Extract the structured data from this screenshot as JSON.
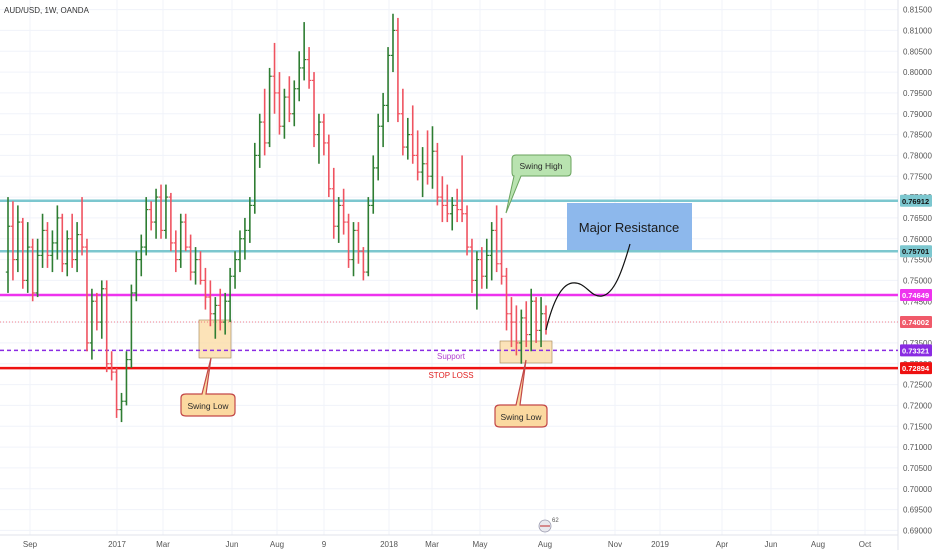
{
  "header": {
    "symbol": "AUD/USD, 1W, OANDA"
  },
  "colors": {
    "up_bar": "#2e7d32",
    "down_bar": "#ef5360",
    "resistance_line": "#7cc7cf",
    "magenta_line": "#ee33ee",
    "support_line": "#8a2be2",
    "stop_line": "#ee1111",
    "current_price": "#f05a6a",
    "resistance_zone": "#8db8ec",
    "swing_low_box": "#fbd9a0",
    "swing_high_box": "#b9e3b0"
  },
  "chart_data": {
    "type": "ohlc",
    "x_tick_labels": [
      "Sep",
      "2017",
      "Mar",
      "Jun",
      "Aug",
      "9",
      "2018",
      "Mar",
      "May",
      "Aug",
      "Nov",
      "2019",
      "Apr",
      "Jun",
      "Aug",
      "Oct"
    ],
    "y_tick_labels": [
      "0.81500",
      "0.81000",
      "0.80500",
      "0.80000",
      "0.79500",
      "0.79000",
      "0.78500",
      "0.78000",
      "0.77500",
      "0.77000",
      "0.76500",
      "0.76000",
      "0.75500",
      "0.75000",
      "0.74500",
      "0.74000",
      "0.73500",
      "0.73000",
      "0.72500",
      "0.72000",
      "0.71500",
      "0.71000",
      "0.70500",
      "0.70000",
      "0.69500",
      "0.69000"
    ],
    "ylim": [
      0.6889,
      0.8173
    ],
    "price_labels": [
      {
        "text": "0.76912",
        "value": 0.76912,
        "role": "resistance"
      },
      {
        "text": "0.75701",
        "value": 0.75701,
        "role": "resistance"
      },
      {
        "text": "0.74649",
        "value": 0.74649,
        "role": "magenta"
      },
      {
        "text": "0.74002",
        "value": 0.74002,
        "role": "current"
      },
      {
        "text": "0.73321",
        "value": 0.73321,
        "role": "support"
      },
      {
        "text": "0.72894",
        "value": 0.72894,
        "role": "stop"
      }
    ],
    "levels": [
      {
        "name": "resistance-upper",
        "value": 0.76912
      },
      {
        "name": "resistance-lower",
        "value": 0.75701
      },
      {
        "name": "magenta-level",
        "value": 0.74649
      },
      {
        "name": "support-level",
        "value": 0.73321
      },
      {
        "name": "stop-loss-level",
        "value": 0.72894
      }
    ],
    "bars": [
      {
        "o": 0.752,
        "h": 0.77,
        "l": 0.747,
        "c": 0.763
      },
      {
        "o": 0.763,
        "h": 0.769,
        "l": 0.75,
        "c": 0.755
      },
      {
        "o": 0.755,
        "h": 0.768,
        "l": 0.752,
        "c": 0.764
      },
      {
        "o": 0.764,
        "h": 0.765,
        "l": 0.748,
        "c": 0.75
      },
      {
        "o": 0.75,
        "h": 0.764,
        "l": 0.747,
        "c": 0.758
      },
      {
        "o": 0.758,
        "h": 0.76,
        "l": 0.745,
        "c": 0.747
      },
      {
        "o": 0.747,
        "h": 0.76,
        "l": 0.746,
        "c": 0.756
      },
      {
        "o": 0.756,
        "h": 0.766,
        "l": 0.753,
        "c": 0.762
      },
      {
        "o": 0.762,
        "h": 0.764,
        "l": 0.753,
        "c": 0.756
      },
      {
        "o": 0.756,
        "h": 0.762,
        "l": 0.752,
        "c": 0.759
      },
      {
        "o": 0.759,
        "h": 0.768,
        "l": 0.755,
        "c": 0.765
      },
      {
        "o": 0.765,
        "h": 0.766,
        "l": 0.752,
        "c": 0.754
      },
      {
        "o": 0.754,
        "h": 0.762,
        "l": 0.751,
        "c": 0.76
      },
      {
        "o": 0.76,
        "h": 0.766,
        "l": 0.753,
        "c": 0.755
      },
      {
        "o": 0.755,
        "h": 0.764,
        "l": 0.752,
        "c": 0.761
      },
      {
        "o": 0.761,
        "h": 0.77,
        "l": 0.756,
        "c": 0.758
      },
      {
        "o": 0.758,
        "h": 0.76,
        "l": 0.733,
        "c": 0.735
      },
      {
        "o": 0.735,
        "h": 0.748,
        "l": 0.731,
        "c": 0.745
      },
      {
        "o": 0.745,
        "h": 0.747,
        "l": 0.738,
        "c": 0.74
      },
      {
        "o": 0.74,
        "h": 0.75,
        "l": 0.736,
        "c": 0.748
      },
      {
        "o": 0.748,
        "h": 0.75,
        "l": 0.728,
        "c": 0.73
      },
      {
        "o": 0.73,
        "h": 0.733,
        "l": 0.726,
        "c": 0.728
      },
      {
        "o": 0.728,
        "h": 0.729,
        "l": 0.717,
        "c": 0.719
      },
      {
        "o": 0.719,
        "h": 0.723,
        "l": 0.716,
        "c": 0.721
      },
      {
        "o": 0.721,
        "h": 0.733,
        "l": 0.72,
        "c": 0.731
      },
      {
        "o": 0.731,
        "h": 0.749,
        "l": 0.729,
        "c": 0.747
      },
      {
        "o": 0.747,
        "h": 0.757,
        "l": 0.745,
        "c": 0.755
      },
      {
        "o": 0.755,
        "h": 0.761,
        "l": 0.751,
        "c": 0.758
      },
      {
        "o": 0.758,
        "h": 0.77,
        "l": 0.756,
        "c": 0.767
      },
      {
        "o": 0.767,
        "h": 0.769,
        "l": 0.762,
        "c": 0.764
      },
      {
        "o": 0.764,
        "h": 0.772,
        "l": 0.76,
        "c": 0.77
      },
      {
        "o": 0.77,
        "h": 0.773,
        "l": 0.76,
        "c": 0.762
      },
      {
        "o": 0.762,
        "h": 0.773,
        "l": 0.76,
        "c": 0.77
      },
      {
        "o": 0.77,
        "h": 0.771,
        "l": 0.757,
        "c": 0.759
      },
      {
        "o": 0.759,
        "h": 0.762,
        "l": 0.752,
        "c": 0.755
      },
      {
        "o": 0.755,
        "h": 0.766,
        "l": 0.753,
        "c": 0.764
      },
      {
        "o": 0.764,
        "h": 0.766,
        "l": 0.757,
        "c": 0.758
      },
      {
        "o": 0.758,
        "h": 0.761,
        "l": 0.75,
        "c": 0.752
      },
      {
        "o": 0.752,
        "h": 0.758,
        "l": 0.749,
        "c": 0.755
      },
      {
        "o": 0.755,
        "h": 0.757,
        "l": 0.749,
        "c": 0.75
      },
      {
        "o": 0.75,
        "h": 0.753,
        "l": 0.743,
        "c": 0.746
      },
      {
        "o": 0.746,
        "h": 0.75,
        "l": 0.739,
        "c": 0.742
      },
      {
        "o": 0.742,
        "h": 0.746,
        "l": 0.736,
        "c": 0.744
      },
      {
        "o": 0.744,
        "h": 0.748,
        "l": 0.738,
        "c": 0.74
      },
      {
        "o": 0.74,
        "h": 0.747,
        "l": 0.737,
        "c": 0.745
      },
      {
        "o": 0.745,
        "h": 0.753,
        "l": 0.74,
        "c": 0.751
      },
      {
        "o": 0.751,
        "h": 0.757,
        "l": 0.748,
        "c": 0.755
      },
      {
        "o": 0.755,
        "h": 0.762,
        "l": 0.752,
        "c": 0.76
      },
      {
        "o": 0.76,
        "h": 0.765,
        "l": 0.755,
        "c": 0.762
      },
      {
        "o": 0.762,
        "h": 0.77,
        "l": 0.759,
        "c": 0.768
      },
      {
        "o": 0.768,
        "h": 0.783,
        "l": 0.766,
        "c": 0.78
      },
      {
        "o": 0.78,
        "h": 0.79,
        "l": 0.777,
        "c": 0.788
      },
      {
        "o": 0.788,
        "h": 0.796,
        "l": 0.78,
        "c": 0.783
      },
      {
        "o": 0.783,
        "h": 0.801,
        "l": 0.782,
        "c": 0.799
      },
      {
        "o": 0.799,
        "h": 0.807,
        "l": 0.79,
        "c": 0.795
      },
      {
        "o": 0.795,
        "h": 0.8,
        "l": 0.785,
        "c": 0.787
      },
      {
        "o": 0.787,
        "h": 0.796,
        "l": 0.784,
        "c": 0.794
      },
      {
        "o": 0.794,
        "h": 0.799,
        "l": 0.788,
        "c": 0.79
      },
      {
        "o": 0.79,
        "h": 0.798,
        "l": 0.787,
        "c": 0.796
      },
      {
        "o": 0.796,
        "h": 0.805,
        "l": 0.793,
        "c": 0.801
      },
      {
        "o": 0.801,
        "h": 0.812,
        "l": 0.798,
        "c": 0.803
      },
      {
        "o": 0.803,
        "h": 0.806,
        "l": 0.796,
        "c": 0.798
      },
      {
        "o": 0.798,
        "h": 0.8,
        "l": 0.782,
        "c": 0.785
      },
      {
        "o": 0.785,
        "h": 0.79,
        "l": 0.778,
        "c": 0.788
      },
      {
        "o": 0.788,
        "h": 0.79,
        "l": 0.78,
        "c": 0.783
      },
      {
        "o": 0.783,
        "h": 0.785,
        "l": 0.77,
        "c": 0.772
      },
      {
        "o": 0.772,
        "h": 0.777,
        "l": 0.76,
        "c": 0.763
      },
      {
        "o": 0.763,
        "h": 0.77,
        "l": 0.759,
        "c": 0.768
      },
      {
        "o": 0.768,
        "h": 0.772,
        "l": 0.761,
        "c": 0.764
      },
      {
        "o": 0.764,
        "h": 0.766,
        "l": 0.753,
        "c": 0.755
      },
      {
        "o": 0.755,
        "h": 0.764,
        "l": 0.751,
        "c": 0.762
      },
      {
        "o": 0.762,
        "h": 0.764,
        "l": 0.754,
        "c": 0.757
      },
      {
        "o": 0.757,
        "h": 0.758,
        "l": 0.75,
        "c": 0.752
      },
      {
        "o": 0.752,
        "h": 0.77,
        "l": 0.751,
        "c": 0.768
      },
      {
        "o": 0.768,
        "h": 0.78,
        "l": 0.766,
        "c": 0.777
      },
      {
        "o": 0.777,
        "h": 0.79,
        "l": 0.774,
        "c": 0.787
      },
      {
        "o": 0.787,
        "h": 0.795,
        "l": 0.782,
        "c": 0.792
      },
      {
        "o": 0.792,
        "h": 0.806,
        "l": 0.788,
        "c": 0.804
      },
      {
        "o": 0.804,
        "h": 0.814,
        "l": 0.8,
        "c": 0.81
      },
      {
        "o": 0.81,
        "h": 0.813,
        "l": 0.788,
        "c": 0.79
      },
      {
        "o": 0.79,
        "h": 0.796,
        "l": 0.78,
        "c": 0.782
      },
      {
        "o": 0.782,
        "h": 0.789,
        "l": 0.779,
        "c": 0.785
      },
      {
        "o": 0.785,
        "h": 0.792,
        "l": 0.778,
        "c": 0.78
      },
      {
        "o": 0.78,
        "h": 0.786,
        "l": 0.774,
        "c": 0.776
      },
      {
        "o": 0.776,
        "h": 0.782,
        "l": 0.77,
        "c": 0.778
      },
      {
        "o": 0.778,
        "h": 0.786,
        "l": 0.773,
        "c": 0.775
      },
      {
        "o": 0.775,
        "h": 0.787,
        "l": 0.772,
        "c": 0.781
      },
      {
        "o": 0.781,
        "h": 0.783,
        "l": 0.768,
        "c": 0.77
      },
      {
        "o": 0.77,
        "h": 0.775,
        "l": 0.764,
        "c": 0.768
      },
      {
        "o": 0.768,
        "h": 0.773,
        "l": 0.764,
        "c": 0.766
      },
      {
        "o": 0.766,
        "h": 0.77,
        "l": 0.762,
        "c": 0.768
      },
      {
        "o": 0.768,
        "h": 0.772,
        "l": 0.764,
        "c": 0.767
      },
      {
        "o": 0.767,
        "h": 0.78,
        "l": 0.764,
        "c": 0.766
      },
      {
        "o": 0.766,
        "h": 0.768,
        "l": 0.756,
        "c": 0.758
      },
      {
        "o": 0.758,
        "h": 0.76,
        "l": 0.747,
        "c": 0.75
      },
      {
        "o": 0.75,
        "h": 0.757,
        "l": 0.743,
        "c": 0.755
      },
      {
        "o": 0.755,
        "h": 0.758,
        "l": 0.748,
        "c": 0.751
      },
      {
        "o": 0.751,
        "h": 0.76,
        "l": 0.748,
        "c": 0.756
      },
      {
        "o": 0.756,
        "h": 0.764,
        "l": 0.75,
        "c": 0.762
      },
      {
        "o": 0.762,
        "h": 0.768,
        "l": 0.752,
        "c": 0.754
      },
      {
        "o": 0.754,
        "h": 0.765,
        "l": 0.749,
        "c": 0.751
      },
      {
        "o": 0.751,
        "h": 0.753,
        "l": 0.738,
        "c": 0.742
      },
      {
        "o": 0.742,
        "h": 0.746,
        "l": 0.734,
        "c": 0.74
      },
      {
        "o": 0.74,
        "h": 0.744,
        "l": 0.732,
        "c": 0.735
      },
      {
        "o": 0.735,
        "h": 0.743,
        "l": 0.73,
        "c": 0.741
      },
      {
        "o": 0.741,
        "h": 0.745,
        "l": 0.734,
        "c": 0.737
      },
      {
        "o": 0.737,
        "h": 0.748,
        "l": 0.733,
        "c": 0.745
      },
      {
        "o": 0.745,
        "h": 0.746,
        "l": 0.735,
        "c": 0.738
      },
      {
        "o": 0.738,
        "h": 0.746,
        "l": 0.734,
        "c": 0.742
      },
      {
        "o": 0.742,
        "h": 0.744,
        "l": 0.737,
        "c": 0.74
      }
    ]
  },
  "annotations": {
    "swing_high": "Swing High",
    "swing_low_left": "Swing Low",
    "swing_low_right": "Swing Low",
    "major_resistance": "Major Resistance",
    "support_label": "Support",
    "stop_loss_label": "STOP LOSS"
  },
  "badge": {
    "count": "62"
  }
}
